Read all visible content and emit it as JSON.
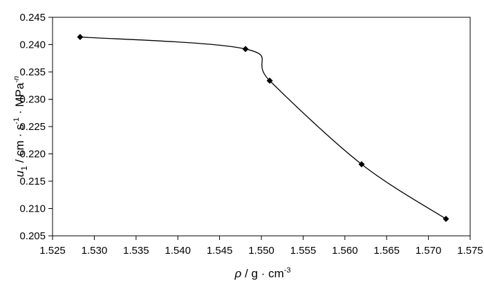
{
  "chart_data": {
    "type": "line",
    "smooth": true,
    "markers": "diamond",
    "grid": false,
    "legend": "none",
    "title": "",
    "xlabel": {
      "var": "ρ",
      "rest": " / g · cm",
      "sup": "-3"
    },
    "ylabel": {
      "var": "u",
      "sub": "1",
      "rest1": " / cm · s",
      "sup1": "-1",
      "rest2": " · MPa",
      "sup2": "-n"
    },
    "xlim": [
      1.525,
      1.575
    ],
    "ylim": [
      0.205,
      0.245
    ],
    "xticks": [
      "1.525",
      "1.530",
      "1.535",
      "1.540",
      "1.545",
      "1.550",
      "1.555",
      "1.560",
      "1.565",
      "1.570",
      "1.575"
    ],
    "yticks": [
      "0.205",
      "0.210",
      "0.215",
      "0.220",
      "0.225",
      "0.230",
      "0.235",
      "0.240",
      "0.245"
    ],
    "series": [
      {
        "color": "#000000",
        "x": [
          1.5283,
          1.5481,
          1.551,
          1.562,
          1.5721
        ],
        "y": [
          0.2414,
          0.2392,
          0.2334,
          0.2181,
          0.2081
        ]
      }
    ]
  }
}
